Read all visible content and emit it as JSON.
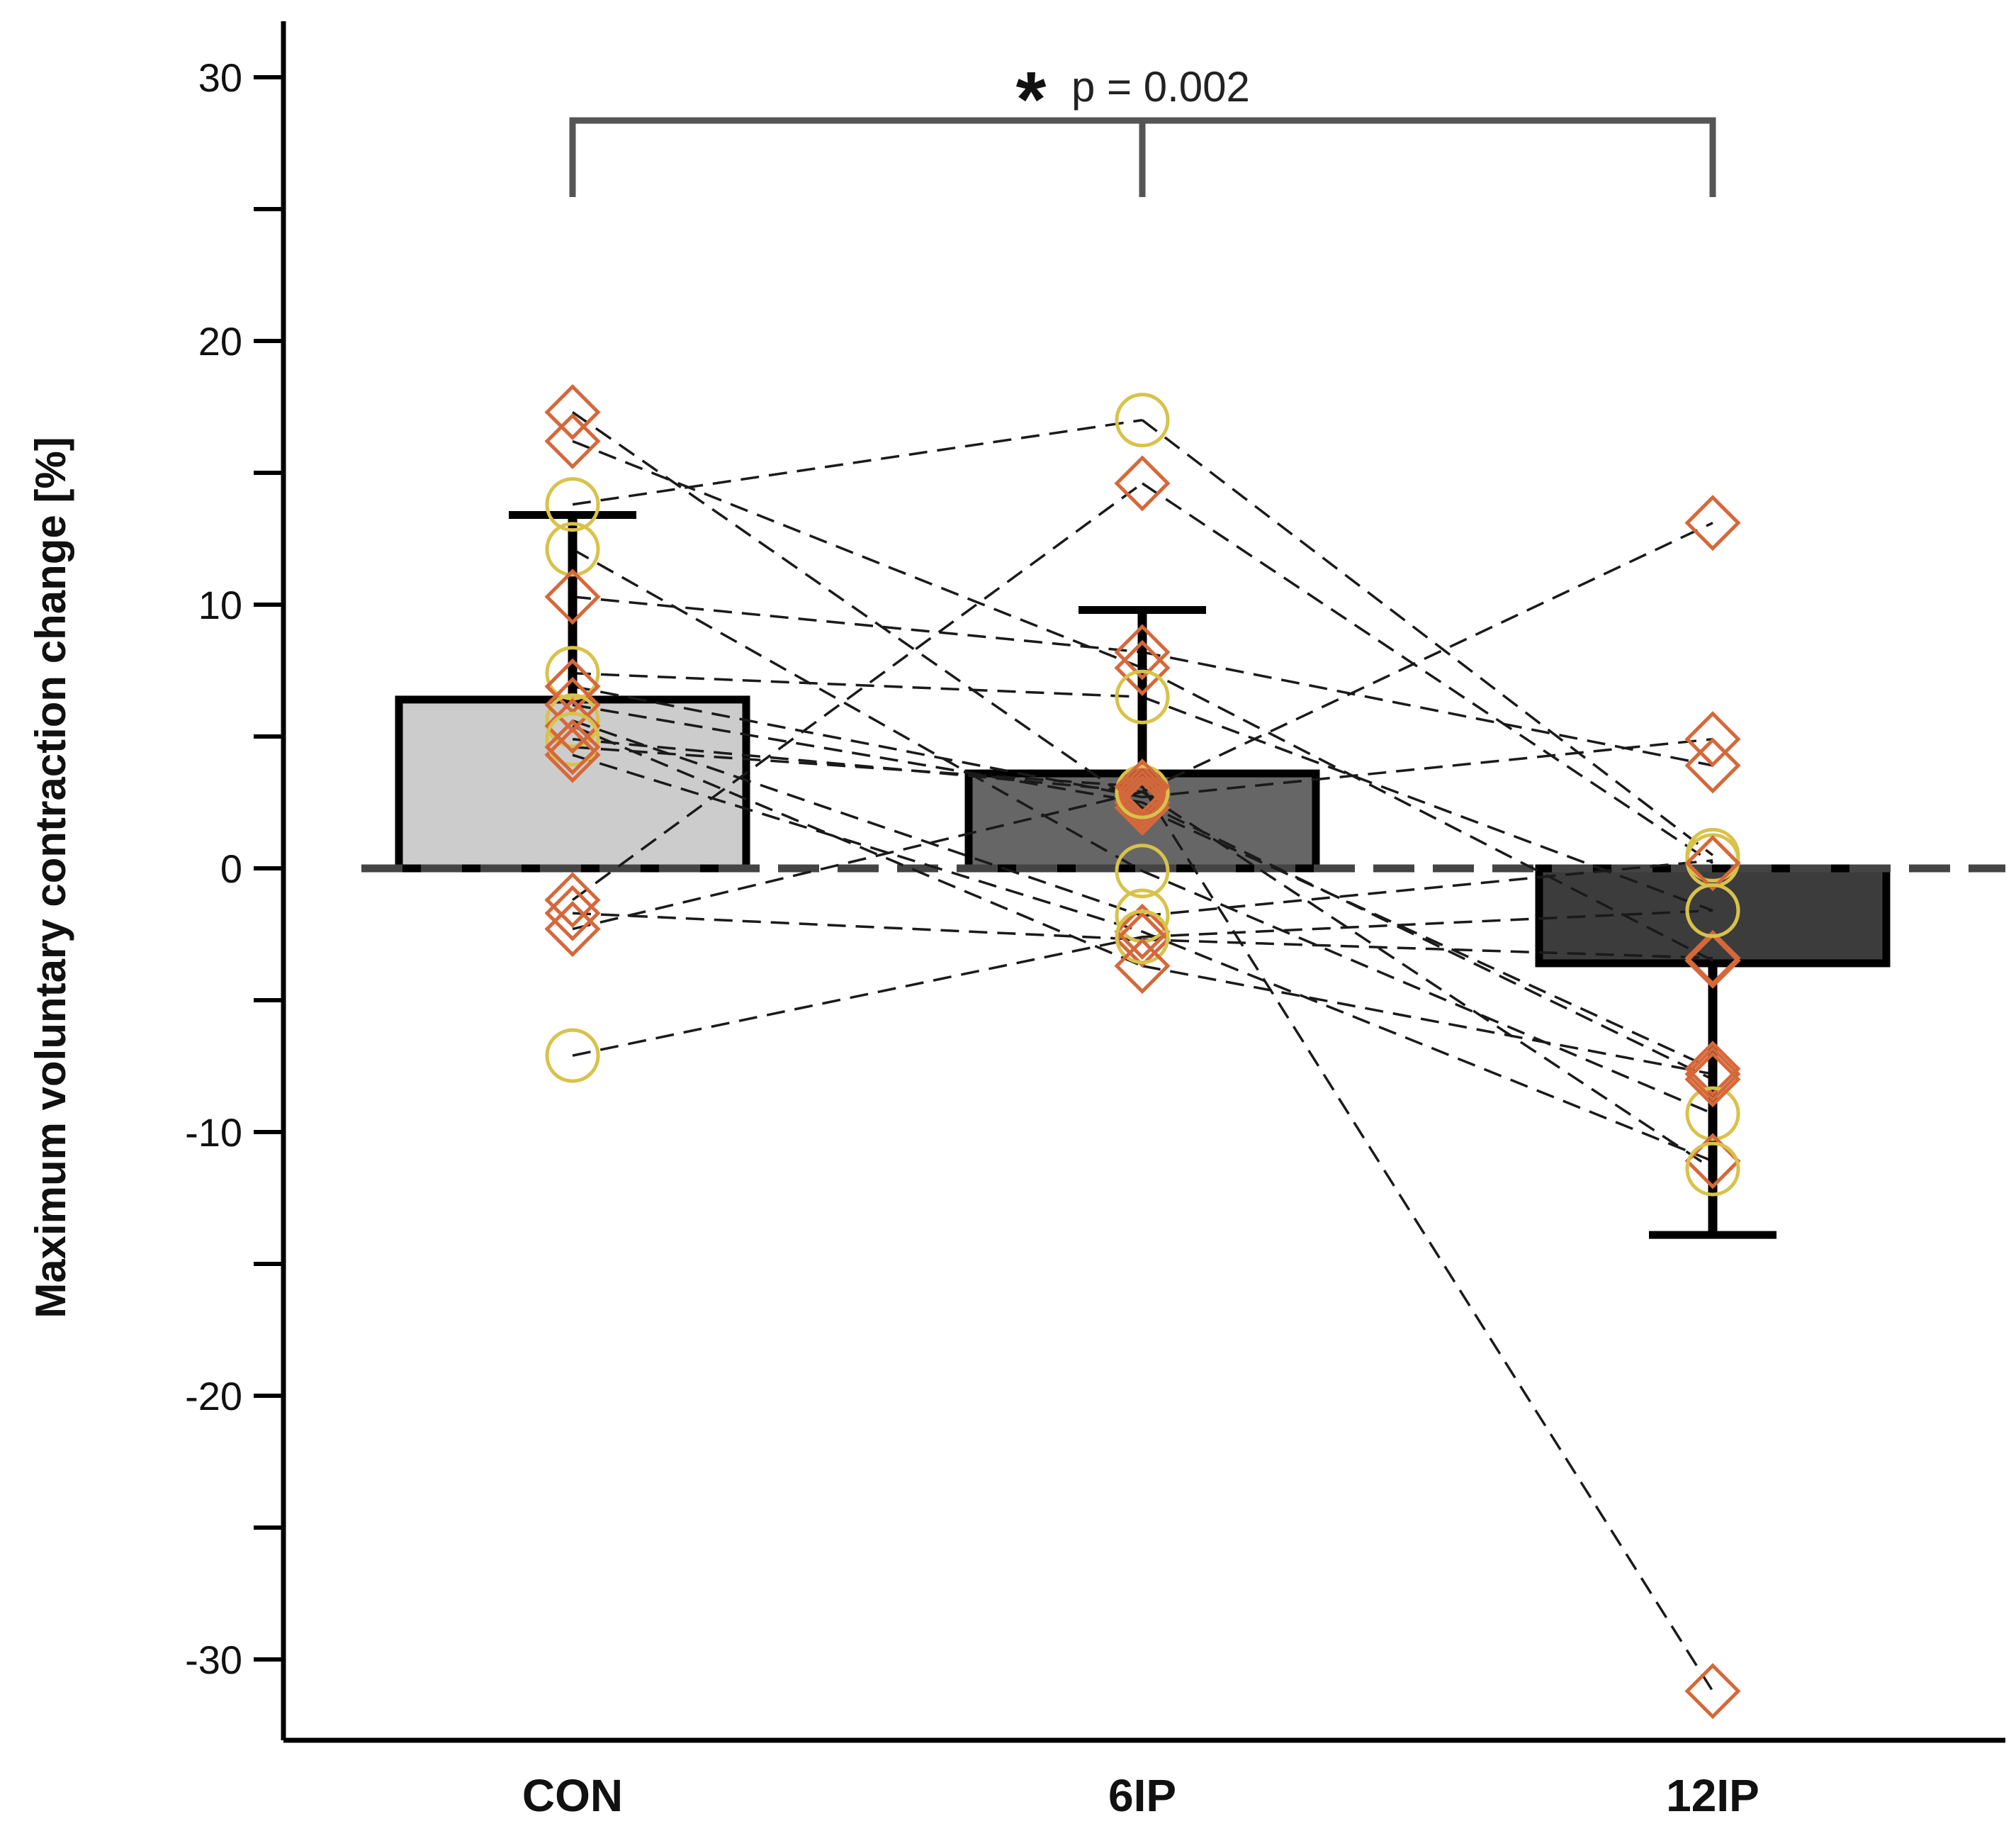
{
  "chart_data": {
    "type": "bar",
    "ylabel": "Maximum voluntary contraction change [%]",
    "xlabel": "",
    "title": "",
    "ylim": [
      -33,
      32
    ],
    "yticks": [
      -30,
      -20,
      -10,
      0,
      10,
      20,
      30
    ],
    "yticks_minor": [
      -25,
      -15,
      -5,
      5,
      15,
      25
    ],
    "categories": [
      "CON",
      "6IP",
      "12IP"
    ],
    "bars": [
      {
        "category": "CON",
        "mean": 6.4,
        "error": 7.0,
        "color": "#cccccc"
      },
      {
        "category": "6IP",
        "mean": 3.6,
        "error": 6.2,
        "color": "#666666"
      },
      {
        "category": "12IP",
        "mean": -3.6,
        "error": 10.3,
        "color": "#3c3c3c"
      }
    ],
    "reference_line": {
      "y": 0,
      "style": "dashed"
    },
    "significance": {
      "star": "*",
      "label": "p = 0.002",
      "groups": [
        "CON",
        "6IP",
        "12IP"
      ]
    },
    "marker_colors": {
      "diamond": "#d5683a",
      "circle": "#d8c24a"
    },
    "subjects": [
      {
        "marker": "diamond",
        "values": [
          17.3,
          2.3,
          -7.6
        ]
      },
      {
        "marker": "diamond",
        "values": [
          16.2,
          7.6,
          -3.5
        ]
      },
      {
        "marker": "circle",
        "values": [
          13.8,
          17.0,
          0.5
        ]
      },
      {
        "marker": "circle",
        "values": [
          12.1,
          -0.1,
          -9.3
        ]
      },
      {
        "marker": "diamond",
        "values": [
          10.3,
          8.2,
          3.9
        ]
      },
      {
        "marker": "circle",
        "values": [
          7.4,
          6.5,
          -1.6
        ]
      },
      {
        "marker": "diamond",
        "values": [
          6.9,
          2.7,
          4.9
        ]
      },
      {
        "marker": "circle",
        "values": [
          5.6,
          -1.8,
          0.3
        ]
      },
      {
        "marker": "diamond",
        "values": [
          4.3,
          -2.4,
          -11.1
        ]
      },
      {
        "marker": "diamond",
        "values": [
          -1.2,
          14.6,
          0.2
        ]
      },
      {
        "marker": "diamond",
        "values": [
          -1.7,
          -2.7,
          -3.4
        ]
      },
      {
        "marker": "diamond",
        "values": [
          -2.3,
          2.9,
          13.1
        ]
      },
      {
        "marker": "circle",
        "values": [
          -7.1,
          -2.6,
          -1.6
        ]
      },
      {
        "marker": "diamond",
        "values": [
          6.2,
          2.5,
          -8.0
        ]
      },
      {
        "marker": "diamond",
        "values": [
          5.4,
          -3.7,
          -7.8
        ]
      },
      {
        "marker": "circle",
        "values": [
          4.9,
          2.9,
          -11.4
        ]
      },
      {
        "marker": "diamond",
        "values": [
          4.6,
          3.1,
          -31.2
        ]
      }
    ]
  }
}
